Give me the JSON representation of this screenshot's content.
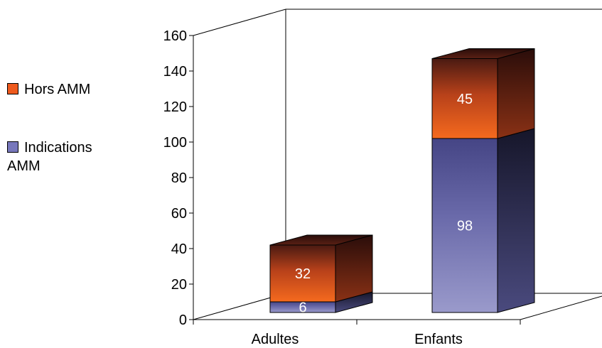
{
  "chart_data": {
    "type": "bar",
    "stacked": true,
    "three_d": true,
    "categories": [
      "Adultes",
      "Enfants"
    ],
    "series": [
      {
        "name": "Indications AMM",
        "values": [
          6,
          98
        ],
        "color": "#7777bb"
      },
      {
        "name": "Hors AMM",
        "values": [
          32,
          45
        ],
        "color": "#ee5a1e"
      }
    ],
    "yticks": [
      "0",
      "20",
      "40",
      "60",
      "80",
      "100",
      "120",
      "140",
      "160"
    ],
    "ylim": [
      0,
      160
    ],
    "legend_position": "left",
    "grid": false,
    "title": "",
    "xlabel": "",
    "ylabel": ""
  }
}
